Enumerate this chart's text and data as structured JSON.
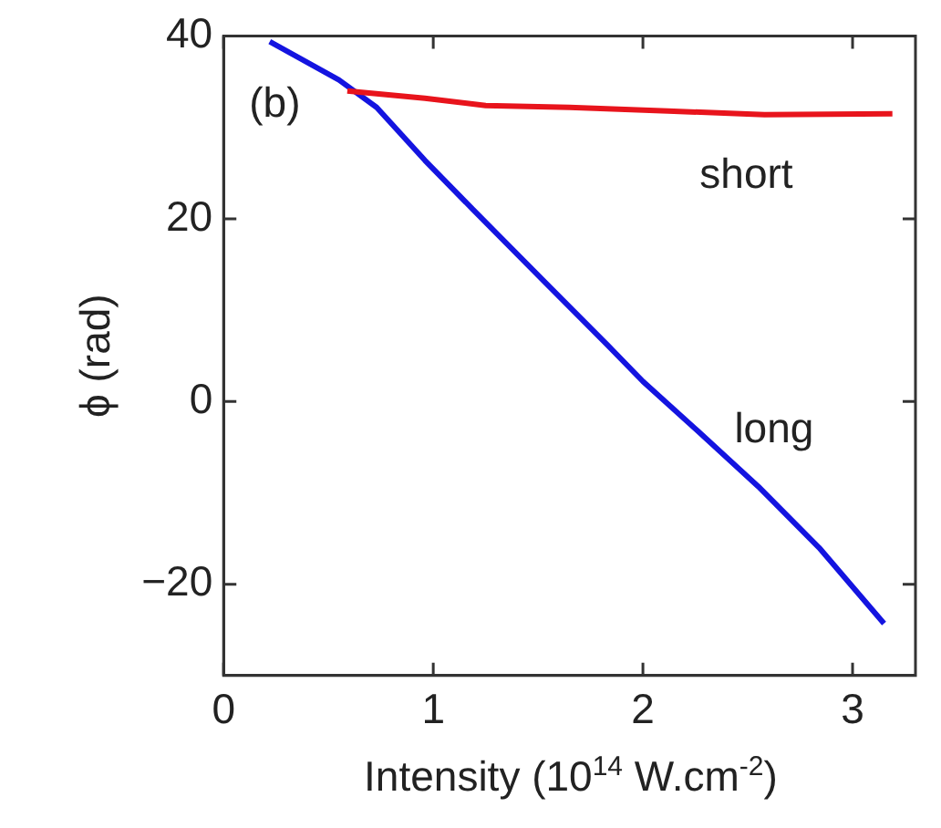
{
  "chart_data": {
    "type": "line",
    "xlabel": "Intensity (10$^{14}$ W.cm$^{-2}$)",
    "ylabel": "ϕ (rad)",
    "xlim": [
      0,
      3.3
    ],
    "xticks": [
      0,
      1,
      2,
      3
    ],
    "ylim": [
      -30,
      40
    ],
    "yticks": [
      -20,
      0,
      20,
      40
    ],
    "grid": false,
    "legend": false,
    "marker": "none",
    "line_style": "solid",
    "annotations": [
      "(b)"
    ],
    "series": [
      {
        "name": "short",
        "color": "#e8141c",
        "x": [
          0.59,
          0.96,
          1.25,
          1.65,
          2.12,
          2.58,
          3.19
        ],
        "values": [
          34.0,
          33.2,
          32.4,
          32.2,
          31.8,
          31.4,
          31.5
        ]
      },
      {
        "name": "long",
        "color": "#1414e0",
        "x": [
          0.22,
          0.55,
          0.73,
          0.96,
          1.19,
          1.54,
          1.83,
          2.0,
          2.26,
          2.55,
          2.84,
          3.15
        ],
        "values": [
          39.4,
          35.2,
          32.2,
          26.4,
          21.0,
          12.9,
          6.2,
          2.2,
          -3.2,
          -9.3,
          -16.0,
          -24.3
        ]
      }
    ]
  }
}
